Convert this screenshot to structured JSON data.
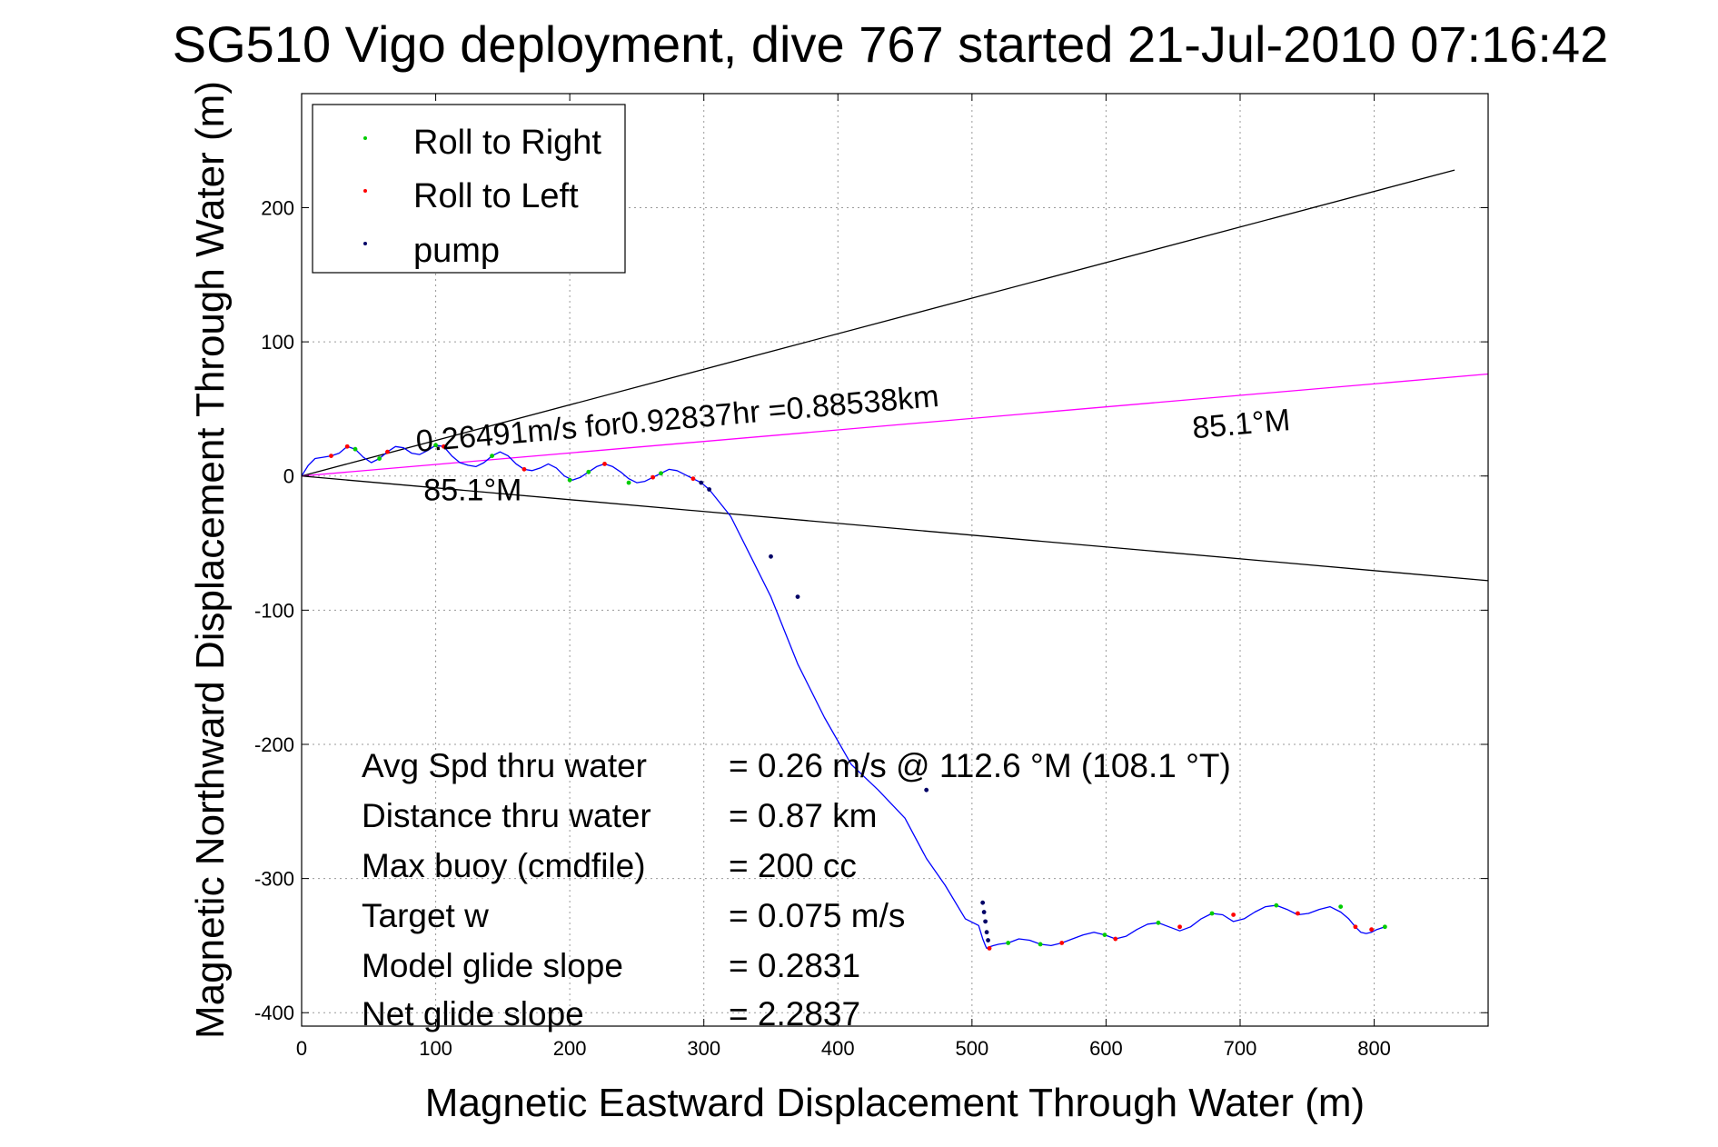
{
  "chart_data": {
    "type": "line",
    "title": "SG510 Vigo deployment, dive 767 started 21-Jul-2010 07:16:42",
    "xlabel": "Magnetic Eastward Displacement Through Water (m)",
    "ylabel": "Magnetic Northward Displacement Through Water (m)",
    "xlim": [
      0,
      885
    ],
    "ylim": [
      -410,
      285
    ],
    "xticks": [
      0,
      100,
      200,
      300,
      400,
      500,
      600,
      700,
      800
    ],
    "xtick_labels": [
      "0",
      "100",
      "200",
      "300",
      "400",
      "500",
      "600",
      "700",
      "800"
    ],
    "yticks": [
      -400,
      -300,
      -200,
      -100,
      0,
      100,
      200
    ],
    "ytick_labels": [
      "-400",
      "-300",
      "-200",
      "-100",
      "0",
      "100",
      "200"
    ],
    "grid": true,
    "legend_position": "top-left",
    "legend": [
      {
        "label": "Roll to Right",
        "color": "#00cc00"
      },
      {
        "label": "Roll to Left",
        "color": "#ff0000"
      },
      {
        "label": "pump",
        "color": "#000066"
      }
    ],
    "track_color": "#0000ff",
    "heading_line_color": "#ff00ff",
    "bound_line_color": "#000000",
    "reference_lines": [
      {
        "name": "upper bound",
        "x": [
          0,
          860
        ],
        "y": [
          0,
          228
        ]
      },
      {
        "name": "lower bound",
        "x": [
          0,
          885
        ],
        "y": [
          0,
          -78
        ]
      },
      {
        "name": "heading",
        "x": [
          0,
          885
        ],
        "y": [
          0,
          76
        ]
      }
    ],
    "track": {
      "x": [
        0,
        5,
        10,
        16,
        22,
        28,
        34,
        40,
        46,
        52,
        58,
        64,
        70,
        76,
        82,
        88,
        94,
        100,
        106,
        112,
        118,
        124,
        130,
        136,
        142,
        148,
        154,
        160,
        166,
        172,
        178,
        184,
        190,
        196,
        202,
        208,
        214,
        220,
        226,
        232,
        238,
        244,
        250,
        256,
        262,
        268,
        274,
        280,
        286,
        292,
        298,
        304,
        320,
        335,
        350,
        370,
        390,
        410,
        430,
        450,
        466,
        480,
        495,
        505,
        508,
        510,
        511,
        513,
        516,
        520,
        527,
        535,
        543,
        551,
        559,
        567,
        575,
        583,
        591,
        599,
        607,
        615,
        623,
        631,
        639,
        647,
        655,
        663,
        671,
        679,
        687,
        695,
        703,
        711,
        719,
        727,
        735,
        743,
        751,
        759,
        767,
        775,
        781,
        786,
        790,
        794,
        798,
        802,
        808
      ],
      "y": [
        0,
        8,
        13,
        14,
        15,
        17,
        22,
        20,
        14,
        10,
        13,
        18,
        22,
        21,
        17,
        16,
        19,
        23,
        22,
        15,
        10,
        8,
        7,
        10,
        15,
        18,
        15,
        9,
        5,
        4,
        6,
        9,
        6,
        0,
        -3,
        -1,
        3,
        7,
        9,
        7,
        3,
        -2,
        -5,
        -4,
        -1,
        2,
        5,
        4,
        1,
        -2,
        -5,
        -10,
        -30,
        -60,
        -90,
        -140,
        -180,
        -215,
        -234,
        -255,
        -285,
        -305,
        -330,
        -335,
        -345,
        -350,
        -352,
        -351,
        -350,
        -349,
        -348,
        -345,
        -346,
        -349,
        -350,
        -348,
        -345,
        -342,
        -340,
        -342,
        -345,
        -343,
        -338,
        -334,
        -333,
        -336,
        -339,
        -336,
        -330,
        -326,
        -327,
        -332,
        -330,
        -325,
        -321,
        -320,
        -323,
        -327,
        -326,
        -323,
        -321,
        -325,
        -330,
        -336,
        -340,
        -341,
        -340,
        -338,
        -336
      ]
    },
    "markers": {
      "roll_right": {
        "x": [
          40,
          58,
          100,
          142,
          200,
          214,
          244,
          268,
          527,
          551,
          599,
          639,
          679,
          727,
          775,
          808
        ],
        "y": [
          20,
          13,
          23,
          15,
          -3,
          3,
          -5,
          2,
          -348,
          -349,
          -342,
          -333,
          -326,
          -320,
          -321,
          -336
        ]
      },
      "roll_left": {
        "x": [
          22,
          34,
          64,
          106,
          166,
          226,
          262,
          292,
          513,
          567,
          607,
          655,
          695,
          743,
          786,
          798
        ],
        "y": [
          15,
          22,
          18,
          22,
          5,
          9,
          -1,
          -2,
          -352,
          -348,
          -345,
          -336,
          -327,
          -326,
          -336,
          -338
        ]
      },
      "pump": {
        "x": [
          298,
          304,
          350,
          370,
          466,
          508,
          509,
          510,
          511,
          512
        ],
        "y": [
          -5,
          -10,
          -60,
          -90,
          -234,
          -318,
          -325,
          -332,
          -340,
          -346
        ]
      }
    },
    "annotations": [
      {
        "text": "0.26491m/s for0.92837hr =0.88538km",
        "x": 86,
        "y": 18,
        "rotate": -5
      },
      {
        "text": "85.1°M",
        "x": 91,
        "y": -18,
        "rotate": 0
      },
      {
        "text": "85.1°M",
        "x": 665,
        "y": 28,
        "rotate": -5
      }
    ],
    "stats": [
      {
        "label": "Avg Spd thru water",
        "value": "=  0.26 m/s @ 112.6 °M (108.1 °T)"
      },
      {
        "label": "Distance thru water",
        "value": "=  0.87 km"
      },
      {
        "label": "Max buoy (cmdfile)",
        "value": "= 200 cc"
      },
      {
        "label": "Target w",
        "value": "= 0.075 m/s"
      },
      {
        "label": "Model glide slope",
        "value": "= 0.2831"
      },
      {
        "label": "Net glide slope",
        "value": "= 2.2837"
      }
    ]
  }
}
